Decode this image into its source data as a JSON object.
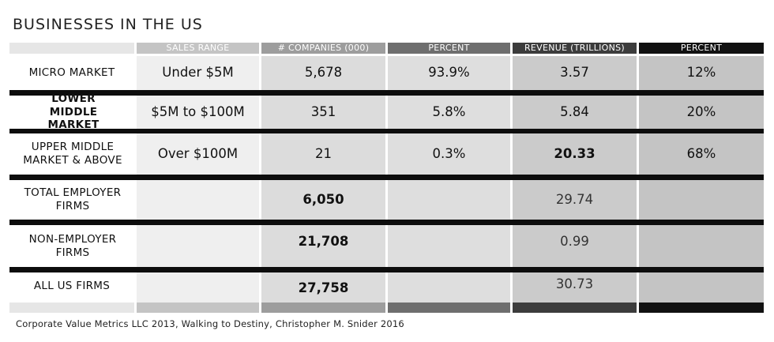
{
  "title": "BUSINESSES IN THE US",
  "headers": [
    "",
    "SALES RANGE",
    "# COMPANIES (000)",
    "PERCENT",
    "REVENUE (TRILLIONS)",
    "PERCENT"
  ],
  "rows": [
    {
      "label": "MICRO MARKET",
      "sales_range": "Under $5M",
      "companies": "5,678",
      "percent_companies": "93.9%",
      "revenue": "3.57",
      "percent_revenue": "12%"
    },
    {
      "label": "LOWER MIDDLE MARKET",
      "sales_range": "$5M to $100M",
      "companies": "351",
      "percent_companies": "5.8%",
      "revenue": "5.84",
      "percent_revenue": "20%"
    },
    {
      "label": "UPPER MIDDLE MARKET & ABOVE",
      "sales_range": "Over $100M",
      "companies": "21",
      "percent_companies": "0.3%",
      "revenue": "20.33",
      "percent_revenue": "68%"
    },
    {
      "label": "TOTAL EMPLOYER FIRMS",
      "sales_range": "",
      "companies": "6,050",
      "percent_companies": "",
      "revenue": "29.74",
      "percent_revenue": ""
    },
    {
      "label": "NON-EMPLOYER FIRMS",
      "sales_range": "",
      "companies": "21,708",
      "percent_companies": "",
      "revenue": "0.99",
      "percent_revenue": ""
    },
    {
      "label": "ALL US FIRMS",
      "sales_range": "",
      "companies": "27,758",
      "percent_companies": "",
      "revenue": "30.73",
      "percent_revenue": ""
    }
  ],
  "footer": "Corporate Value Metrics LLC 2013, Walking to Destiny, Christopher M. Snider 2016",
  "colors": {
    "header": [
      "#e6e6e6",
      "#c4c4c4",
      "#9d9d9d",
      "#6e6e6e",
      "#3c3c3c",
      "#111111"
    ],
    "body": [
      "#ffffff",
      "#efefef",
      "#dcdcdc",
      "#dedede",
      "#cbcbcb",
      "#c4c4c4"
    ],
    "rule": "#0d0d0d"
  }
}
